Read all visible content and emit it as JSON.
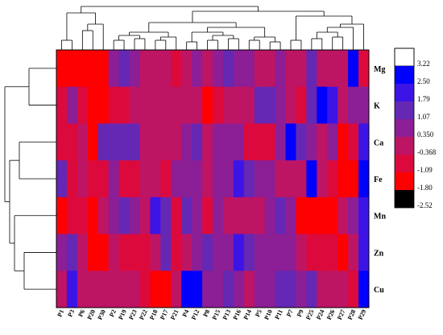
{
  "chart_data": {
    "type": "heatmap",
    "title": "",
    "xlabel": "",
    "ylabel": "",
    "rows": [
      "Mg",
      "K",
      "Ca",
      "Fe",
      "Mn",
      "Zn",
      "Cu"
    ],
    "columns": [
      "P1",
      "P3",
      "P6",
      "P20",
      "P30",
      "P2",
      "P19",
      "P23",
      "P22",
      "P18",
      "P17",
      "P21",
      "P4",
      "P12",
      "P8",
      "P15",
      "P13",
      "P16",
      "P14",
      "P5",
      "P10",
      "P11",
      "P7",
      "P9",
      "P25",
      "P24",
      "P26",
      "P27",
      "P28",
      "P29"
    ],
    "values": [
      [
        -1.8,
        -1.8,
        -1.8,
        -1.8,
        -1.8,
        0.35,
        1.07,
        0.35,
        -0.368,
        -0.368,
        -0.368,
        -1.09,
        -0.368,
        0.35,
        -0.368,
        0.35,
        1.07,
        0.35,
        0.35,
        -0.368,
        -0.368,
        0.35,
        -0.368,
        -0.368,
        1.07,
        -0.368,
        -0.368,
        -0.368,
        2.5,
        -1.09
      ],
      [
        -1.09,
        0.35,
        -1.09,
        -1.8,
        -1.8,
        -1.09,
        -1.09,
        -0.368,
        -0.368,
        -0.368,
        -0.368,
        -0.368,
        -0.368,
        -0.368,
        -1.8,
        -1.09,
        -0.368,
        -0.368,
        -0.368,
        1.07,
        1.07,
        0.35,
        -0.368,
        -1.09,
        1.07,
        2.5,
        1.79,
        -0.368,
        0.35,
        0.35
      ],
      [
        -1.09,
        -1.09,
        -0.368,
        -1.8,
        1.07,
        1.07,
        1.07,
        1.07,
        -0.368,
        -0.368,
        -0.368,
        -0.368,
        0.35,
        1.07,
        -0.368,
        0.35,
        0.35,
        0.35,
        -1.09,
        -1.09,
        -1.09,
        0.35,
        2.5,
        1.07,
        0.35,
        -0.368,
        0.35,
        -1.8,
        -1.09,
        1.79
      ],
      [
        1.07,
        -1.09,
        -0.368,
        -1.09,
        -1.09,
        0.35,
        -1.09,
        -1.09,
        -0.368,
        -0.368,
        -1.09,
        0.35,
        0.35,
        0.35,
        -0.368,
        0.35,
        0.35,
        1.79,
        1.07,
        0.35,
        0.35,
        -0.368,
        -0.368,
        -0.368,
        2.5,
        -0.368,
        -1.09,
        -1.8,
        -1.8,
        2.5
      ],
      [
        -1.8,
        -1.09,
        -1.09,
        -1.8,
        -0.368,
        0.35,
        1.07,
        0.35,
        -0.368,
        1.79,
        1.07,
        -1.09,
        1.07,
        0.35,
        -1.09,
        0.35,
        -0.368,
        -0.368,
        -0.368,
        -0.368,
        0.35,
        1.07,
        0.35,
        -1.8,
        -1.8,
        -1.8,
        -1.8,
        -0.368,
        0.35,
        1.79
      ],
      [
        0.35,
        1.07,
        -0.368,
        -1.8,
        -1.8,
        -0.368,
        -1.09,
        -1.09,
        -1.09,
        -0.368,
        1.07,
        -1.09,
        -0.368,
        0.35,
        1.07,
        0.35,
        0.35,
        1.79,
        1.07,
        0.35,
        0.35,
        0.35,
        0.35,
        -0.368,
        -1.09,
        -1.09,
        -1.09,
        -1.8,
        -0.368,
        1.79
      ],
      [
        -0.368,
        1.79,
        -0.368,
        -0.368,
        -0.368,
        -0.368,
        -0.368,
        -0.368,
        -1.09,
        -1.8,
        -1.8,
        -0.368,
        2.5,
        2.5,
        0.35,
        0.35,
        1.07,
        0.35,
        -0.368,
        0.35,
        0.35,
        1.07,
        1.07,
        0.35,
        1.07,
        -0.368,
        -0.368,
        -0.368,
        -1.09,
        2.5
      ]
    ],
    "legend": {
      "ticks": [
        3.22,
        2.5,
        1.79,
        1.07,
        0.35,
        -0.368,
        -1.09,
        -1.8,
        -2.52
      ],
      "tick_labels": [
        "3.22",
        "2.50",
        "1.79",
        "1.07",
        "0.350",
        "-0.368",
        "-1.09",
        "-1.80",
        "-2.52"
      ],
      "colors": [
        "#ffffff",
        "#0000ff",
        "#3c14e6",
        "#6428b4",
        "#8c1e96",
        "#be1464",
        "#dc0a3c",
        "#ff0000",
        "#000000"
      ],
      "placement": "right"
    },
    "row_dendrogram": true,
    "column_dendrogram": true
  }
}
